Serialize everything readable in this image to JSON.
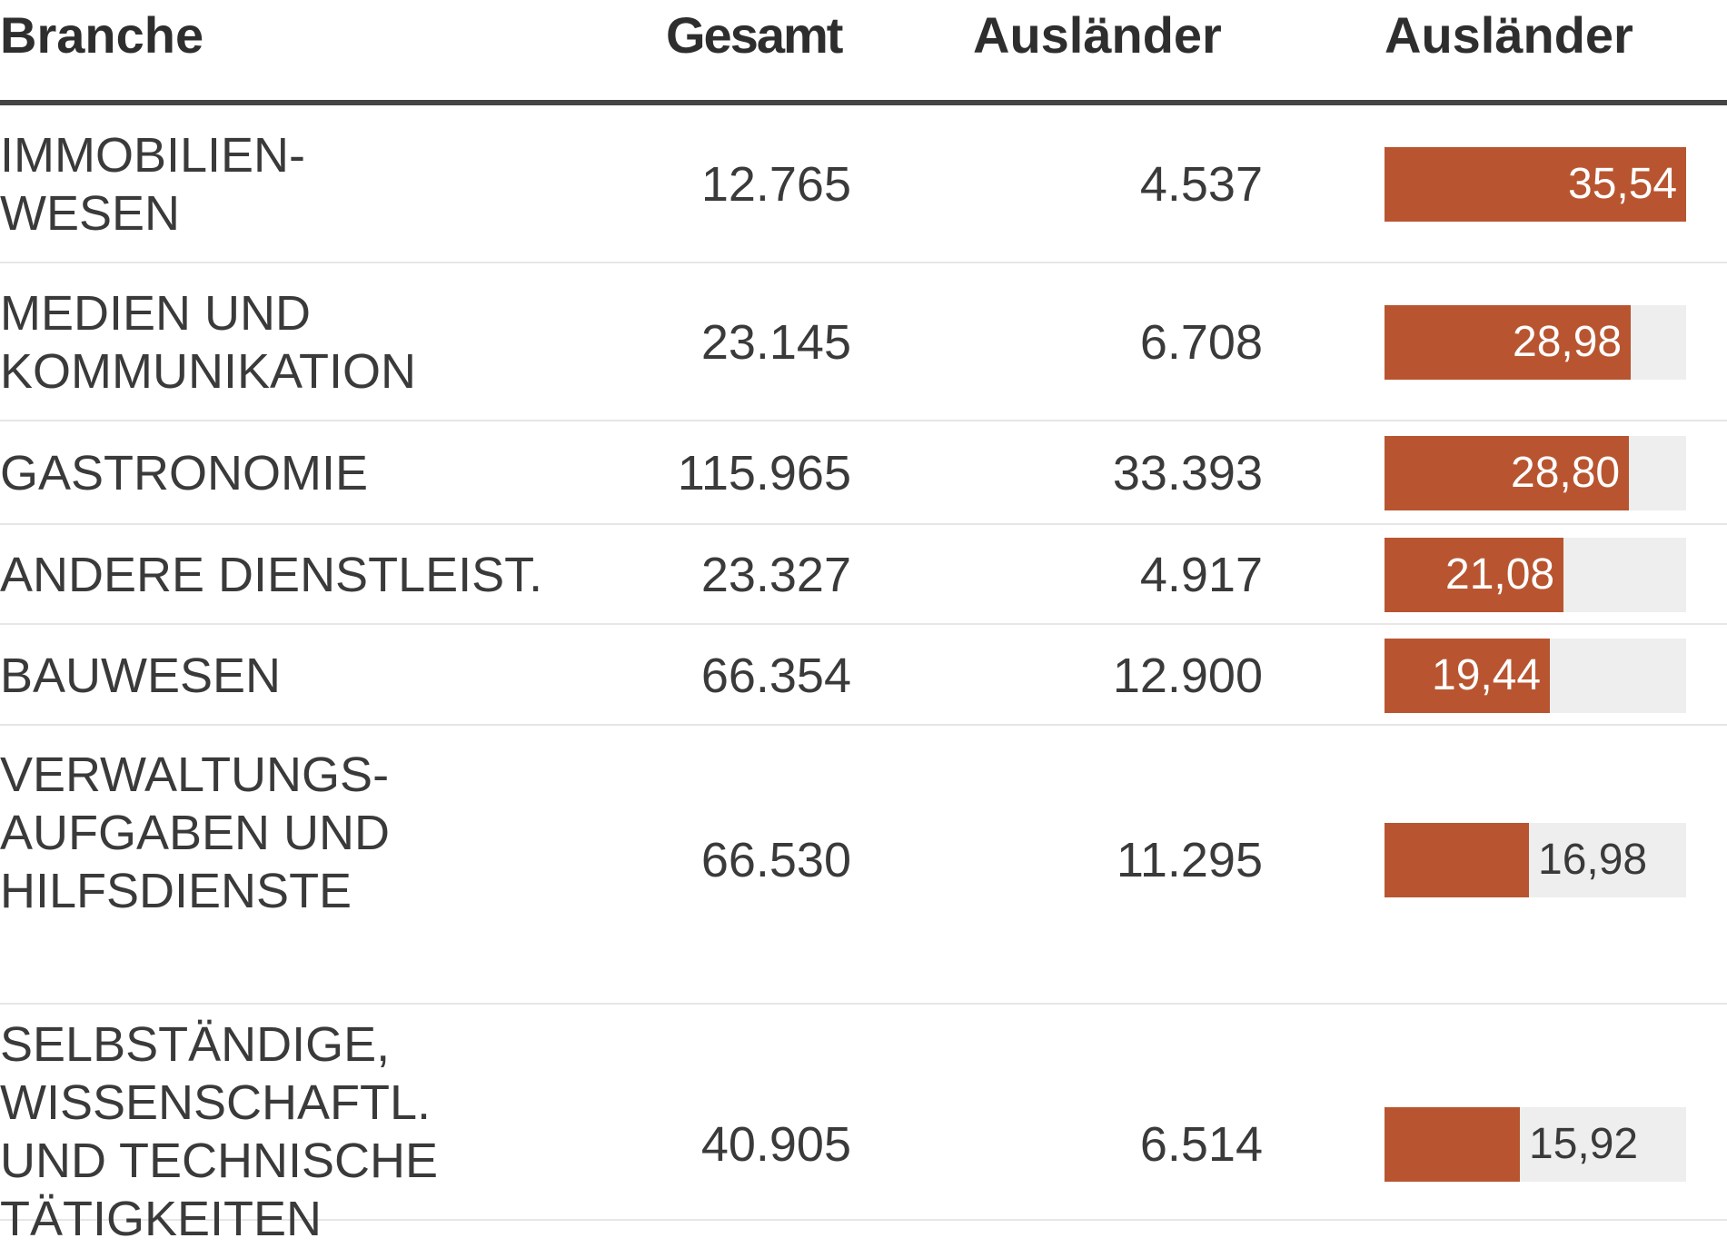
{
  "header": {
    "branche": "Branche",
    "gesamt": "Gesamt",
    "auslaender": "Ausländer",
    "auslaender_pct": "Ausländer"
  },
  "colors": {
    "bar": "#b85530",
    "track": "#eeeeee",
    "rule": "#444444"
  },
  "chart_data": {
    "type": "table",
    "columns": [
      "Branche",
      "Gesamt",
      "Ausländer",
      "Ausländer"
    ],
    "bar_column": "Ausländer",
    "bar_max": 35.54,
    "rows": [
      {
        "branche": "IMMOBILIEN-\nWESEN",
        "gesamt": "12.765",
        "auslaender": "4.537",
        "anteil": 35.54,
        "anteil_label": "35,54"
      },
      {
        "branche": "MEDIEN UND\nKOMMUNIKATION",
        "gesamt": "23.145",
        "auslaender": "6.708",
        "anteil": 28.98,
        "anteil_label": "28,98"
      },
      {
        "branche": "GASTRONOMIE",
        "gesamt": "115.965",
        "auslaender": "33.393",
        "anteil": 28.8,
        "anteil_label": "28,80"
      },
      {
        "branche": "ANDERE DIENSTLEIST.",
        "gesamt": "23.327",
        "auslaender": "4.917",
        "anteil": 21.08,
        "anteil_label": "21,08"
      },
      {
        "branche": "BAUWESEN",
        "gesamt": "66.354",
        "auslaender": "12.900",
        "anteil": 19.44,
        "anteil_label": "19,44"
      },
      {
        "branche": "VERWALTUNGS-\nAUFGABEN UND\nHILFSDIENSTE",
        "gesamt": "66.530",
        "auslaender": "11.295",
        "anteil": 16.98,
        "anteil_label": "16,98"
      },
      {
        "branche": "SELBSTÄNDIGE,\nWISSENSCHAFTL.\nUND TECHNISCHE\nTÄTIGKEITEN",
        "gesamt": "40.905",
        "auslaender": "6.514",
        "anteil": 15.92,
        "anteil_label": "15,92"
      }
    ]
  }
}
